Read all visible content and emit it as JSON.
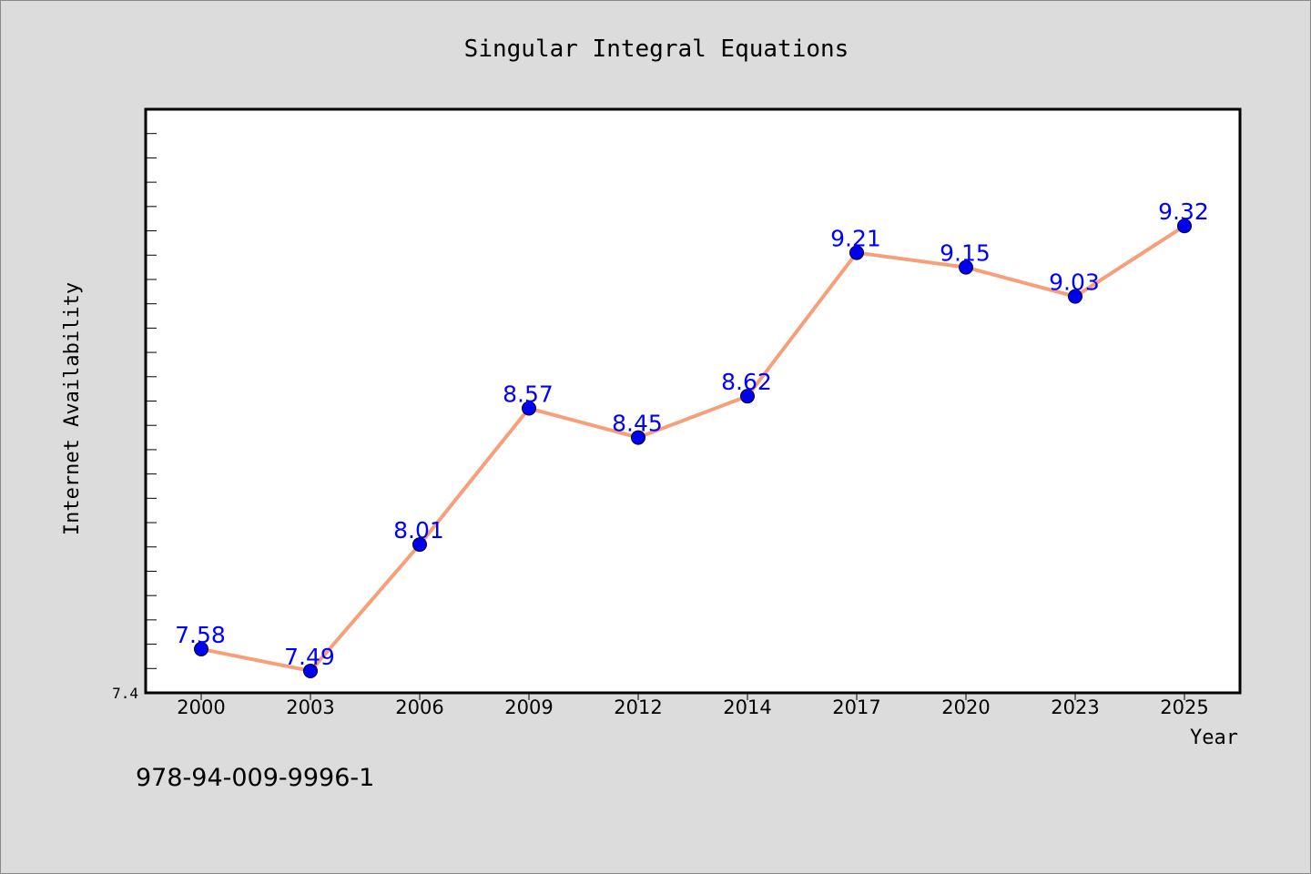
{
  "chart_data": {
    "type": "line",
    "title": "Singular Integral Equations",
    "xlabel": "Year",
    "ylabel": "Internet Availability",
    "categories": [
      "2000",
      "2003",
      "2006",
      "2009",
      "2012",
      "2014",
      "2017",
      "2020",
      "2023",
      "2025"
    ],
    "values": [
      7.58,
      7.49,
      8.01,
      8.57,
      8.45,
      8.62,
      9.21,
      9.15,
      9.03,
      9.32
    ],
    "ylim": [
      7.4,
      9.8
    ],
    "ytick_labels": [
      "7.4"
    ],
    "grid": false,
    "legend": "none",
    "colors": {
      "line": "#f5a07a",
      "marker": "#0000ee",
      "data_label": "#0000ff",
      "plot_background": "#ffffff",
      "page_background": "#dcdcdc"
    }
  },
  "footer": {
    "isbn": "978-94-009-9996-1"
  }
}
